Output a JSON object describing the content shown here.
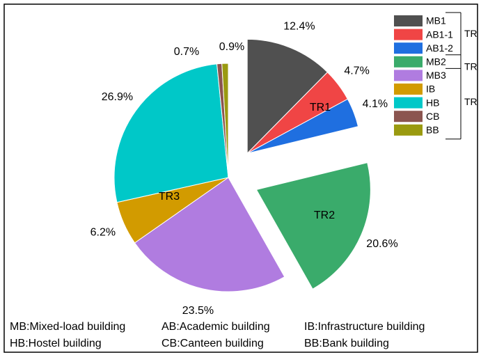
{
  "chart_data": {
    "type": "pie",
    "categories": [
      "MB1",
      "AB1-1",
      "AB1-2",
      "MB2",
      "MB3",
      "IB",
      "HB",
      "CB",
      "BB"
    ],
    "values": [
      12.4,
      4.7,
      4.1,
      20.6,
      23.5,
      6.2,
      26.9,
      0.7,
      0.9
    ],
    "value_labels": [
      "12.4%",
      "4.7%",
      "4.1%",
      "20.6%",
      "23.5%",
      "6.2%",
      "26.9%",
      "0.7%",
      "0.9%"
    ],
    "colors": [
      "#505050",
      "#f04545",
      "#1f6fe0",
      "#3aab6b",
      "#b07ce0",
      "#d29b00",
      "#00c8c8",
      "#8b5550",
      "#9a9a10"
    ],
    "groups": [
      {
        "name": "TR1",
        "categories": [
          "MB1",
          "AB1-1",
          "AB1-2"
        ]
      },
      {
        "name": "TR2",
        "categories": [
          "MB2"
        ]
      },
      {
        "name": "TR3",
        "categories": [
          "MB3",
          "IB",
          "HB",
          "CB",
          "BB"
        ]
      }
    ],
    "notes": [
      "MB:Mixed-load building",
      "AB:Academic building",
      "IB:Infrastructure building",
      "HB:Hostel building",
      "CB:Canteen building",
      "BB:Bank building"
    ]
  }
}
